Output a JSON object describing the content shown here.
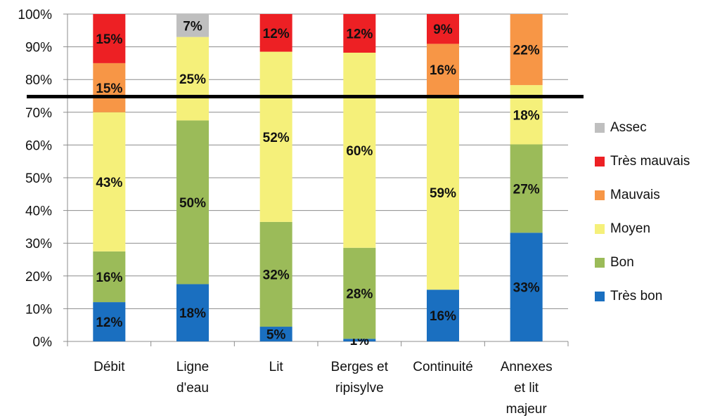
{
  "chart_data": {
    "type": "bar",
    "stacked": true,
    "normalized_percent": true,
    "categories": [
      [
        "Débit"
      ],
      [
        "Ligne",
        "d'eau"
      ],
      [
        "Lit"
      ],
      [
        "Berges et",
        "ripisylve"
      ],
      [
        "Continuité"
      ],
      [
        "Annexes",
        "et lit",
        "majeur"
      ]
    ],
    "series": [
      {
        "name": "Très bon",
        "color": "#1a6fc0",
        "values": [
          12,
          17.5,
          4.5,
          0.8,
          15.8,
          33.2
        ],
        "labels": [
          "12%",
          "18%",
          "5%",
          "1%",
          "16%",
          "33%"
        ]
      },
      {
        "name": "Bon",
        "color": "#9bbb59",
        "values": [
          15.5,
          50,
          32,
          27.8,
          0,
          27
        ],
        "labels": [
          "16%",
          "50%",
          "32%",
          "28%",
          "",
          "27%"
        ]
      },
      {
        "name": "Moyen",
        "color": "#f5f07a",
        "values": [
          42.5,
          25.5,
          52,
          59.6,
          59.4,
          18.1
        ],
        "labels": [
          "43%",
          "25%",
          "52%",
          "60%",
          "59%",
          "18%"
        ]
      },
      {
        "name": "Mauvais",
        "color": "#f79646",
        "values": [
          15,
          0,
          0,
          0,
          15.7,
          21.7
        ],
        "labels": [
          "15%",
          "",
          "",
          "",
          "16%",
          "22%"
        ]
      },
      {
        "name": "Très mauvais",
        "color": "#ed2024",
        "values": [
          15,
          0,
          11.5,
          11.8,
          9.1,
          0
        ],
        "labels": [
          "15%",
          "",
          "12%",
          "12%",
          "9%",
          ""
        ]
      },
      {
        "name": "Assec",
        "color": "#bfbfbf",
        "values": [
          0,
          7,
          0,
          0,
          0,
          0
        ],
        "labels": [
          "",
          "7%",
          "",
          "",
          "",
          ""
        ]
      }
    ],
    "y_ticks": [
      "0%",
      "10%",
      "20%",
      "30%",
      "40%",
      "50%",
      "60%",
      "70%",
      "80%",
      "90%",
      "100%"
    ],
    "ylim": [
      0,
      100
    ],
    "reference_line": 75,
    "legend_order": [
      "Assec",
      "Très mauvais",
      "Mauvais",
      "Moyen",
      "Bon",
      "Très bon"
    ],
    "legend_position": "right",
    "grid": true
  }
}
